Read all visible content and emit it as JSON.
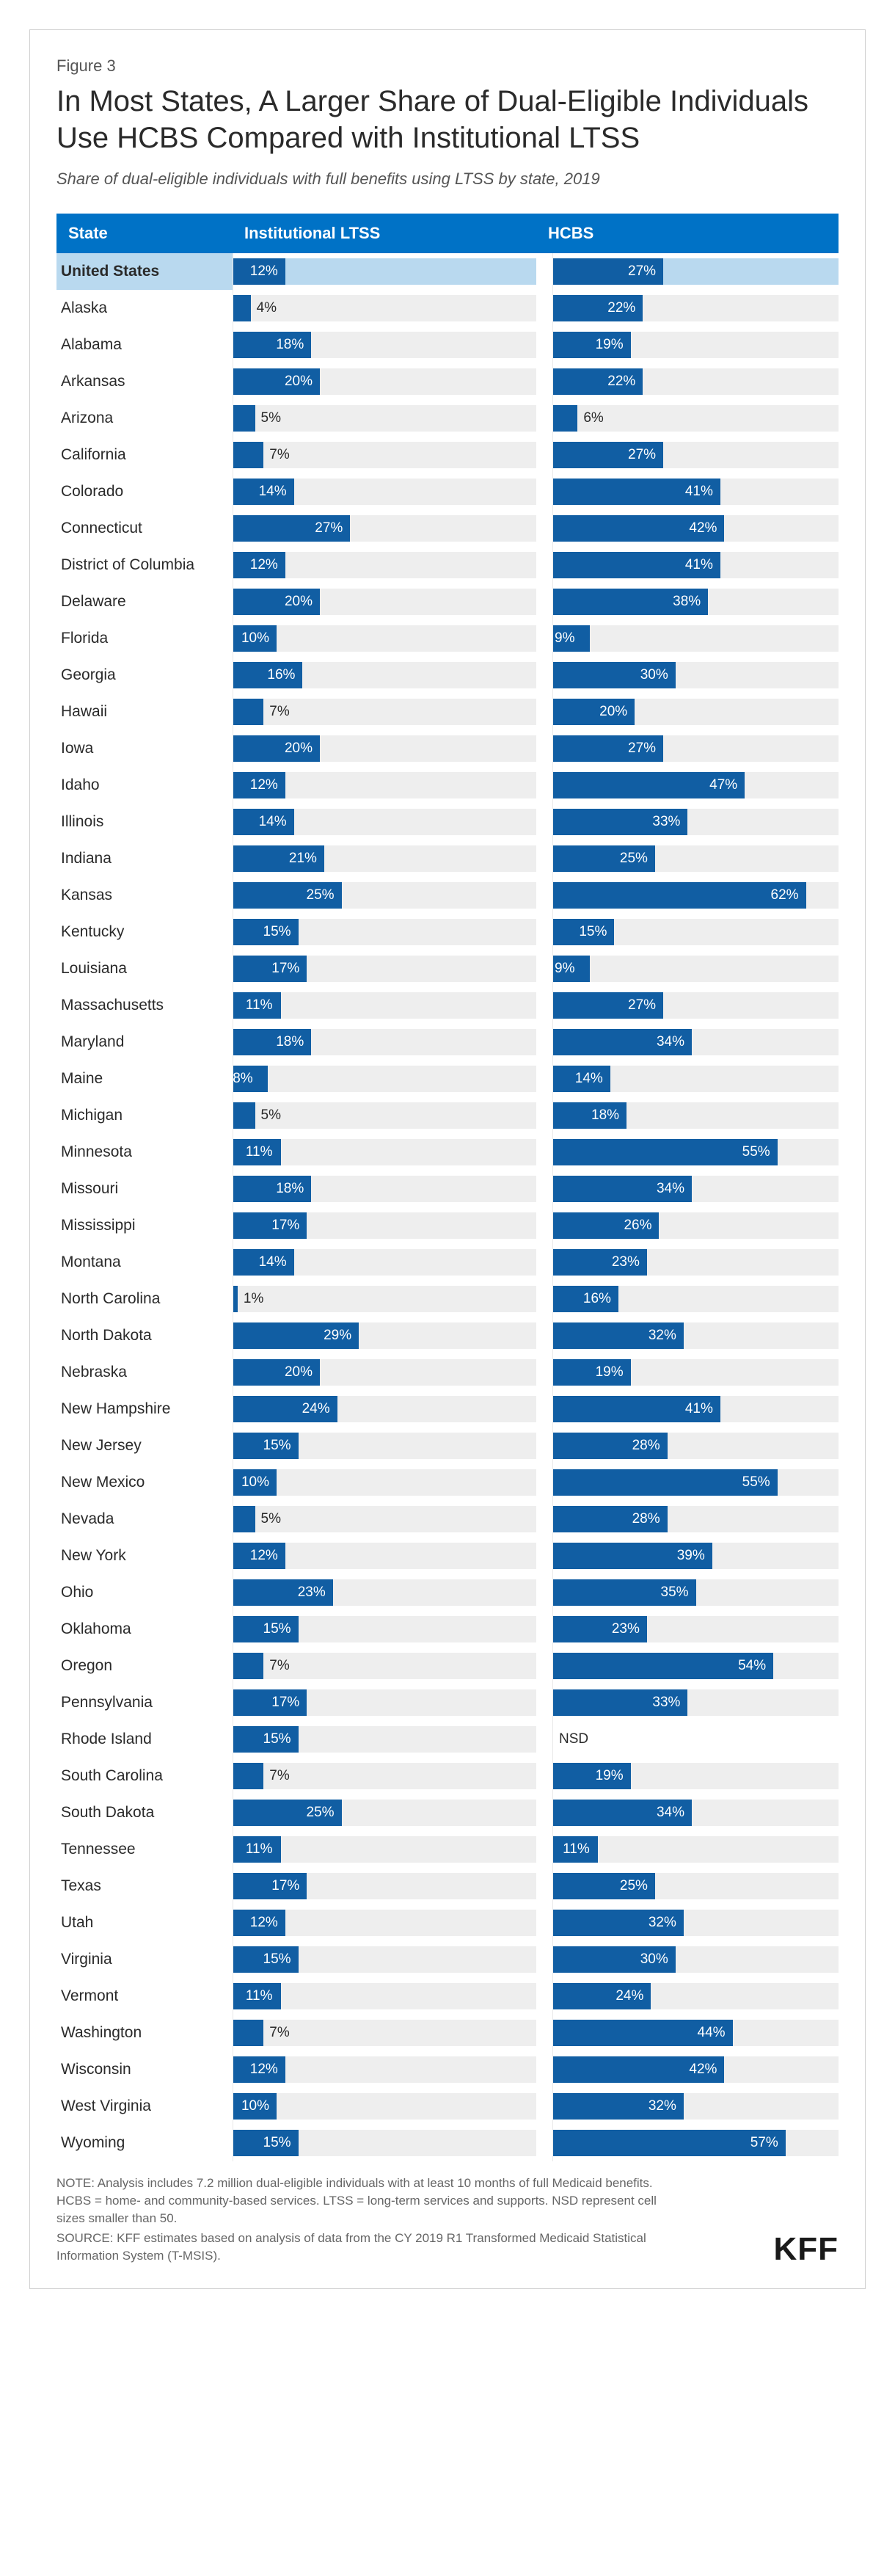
{
  "figure_label": "Figure 3",
  "title": "In Most States, A Larger Share of Dual-Eligible Individuals Use HCBS Compared with Institutional LTSS",
  "subtitle": "Share of dual-eligible individuals with full benefits using LTSS by state, 2019",
  "columns": {
    "state": "State",
    "institutional": "Institutional LTSS",
    "hcbs": "HCBS"
  },
  "bar_color": "#115ea3",
  "track_color": "#eeeeee",
  "highlight_color": "#b9d9ef",
  "header_bg": "#0072c6",
  "text_color": "#2a2a2a",
  "inside_threshold": 8,
  "axis_max": 70,
  "rows": [
    {
      "state": "United States",
      "inst": 12,
      "hcbs": 27,
      "highlight": true
    },
    {
      "state": "Alaska",
      "inst": 4,
      "hcbs": 22
    },
    {
      "state": "Alabama",
      "inst": 18,
      "hcbs": 19
    },
    {
      "state": "Arkansas",
      "inst": 20,
      "hcbs": 22
    },
    {
      "state": "Arizona",
      "inst": 5,
      "hcbs": 6
    },
    {
      "state": "California",
      "inst": 7,
      "hcbs": 27
    },
    {
      "state": "Colorado",
      "inst": 14,
      "hcbs": 41
    },
    {
      "state": "Connecticut",
      "inst": 27,
      "hcbs": 42
    },
    {
      "state": "District of Columbia",
      "inst": 12,
      "hcbs": 41
    },
    {
      "state": "Delaware",
      "inst": 20,
      "hcbs": 38
    },
    {
      "state": "Florida",
      "inst": 10,
      "hcbs": 9
    },
    {
      "state": "Georgia",
      "inst": 16,
      "hcbs": 30
    },
    {
      "state": "Hawaii",
      "inst": 7,
      "hcbs": 20
    },
    {
      "state": "Iowa",
      "inst": 20,
      "hcbs": 27
    },
    {
      "state": "Idaho",
      "inst": 12,
      "hcbs": 47
    },
    {
      "state": "Illinois",
      "inst": 14,
      "hcbs": 33
    },
    {
      "state": "Indiana",
      "inst": 21,
      "hcbs": 25
    },
    {
      "state": "Kansas",
      "inst": 25,
      "hcbs": 62
    },
    {
      "state": "Kentucky",
      "inst": 15,
      "hcbs": 15
    },
    {
      "state": "Louisiana",
      "inst": 17,
      "hcbs": 9
    },
    {
      "state": "Massachusetts",
      "inst": 11,
      "hcbs": 27
    },
    {
      "state": "Maryland",
      "inst": 18,
      "hcbs": 34
    },
    {
      "state": "Maine",
      "inst": 8,
      "hcbs": 14
    },
    {
      "state": "Michigan",
      "inst": 5,
      "hcbs": 18
    },
    {
      "state": "Minnesota",
      "inst": 11,
      "hcbs": 55
    },
    {
      "state": "Missouri",
      "inst": 18,
      "hcbs": 34
    },
    {
      "state": "Mississippi",
      "inst": 17,
      "hcbs": 26
    },
    {
      "state": "Montana",
      "inst": 14,
      "hcbs": 23
    },
    {
      "state": "North Carolina",
      "inst": 1,
      "hcbs": 16
    },
    {
      "state": "North Dakota",
      "inst": 29,
      "hcbs": 32
    },
    {
      "state": "Nebraska",
      "inst": 20,
      "hcbs": 19
    },
    {
      "state": "New Hampshire",
      "inst": 24,
      "hcbs": 41
    },
    {
      "state": "New Jersey",
      "inst": 15,
      "hcbs": 28
    },
    {
      "state": "New Mexico",
      "inst": 10,
      "hcbs": 55
    },
    {
      "state": "Nevada",
      "inst": 5,
      "hcbs": 28
    },
    {
      "state": "New York",
      "inst": 12,
      "hcbs": 39
    },
    {
      "state": "Ohio",
      "inst": 23,
      "hcbs": 35
    },
    {
      "state": "Oklahoma",
      "inst": 15,
      "hcbs": 23
    },
    {
      "state": "Oregon",
      "inst": 7,
      "hcbs": 54
    },
    {
      "state": "Pennsylvania",
      "inst": 17,
      "hcbs": 33
    },
    {
      "state": "Rhode Island",
      "inst": 15,
      "hcbs": null,
      "hcbs_text": "NSD"
    },
    {
      "state": "South Carolina",
      "inst": 7,
      "hcbs": 19
    },
    {
      "state": "South Dakota",
      "inst": 25,
      "hcbs": 34
    },
    {
      "state": "Tennessee",
      "inst": 11,
      "hcbs": 11
    },
    {
      "state": "Texas",
      "inst": 17,
      "hcbs": 25
    },
    {
      "state": "Utah",
      "inst": 12,
      "hcbs": 32
    },
    {
      "state": "Virginia",
      "inst": 15,
      "hcbs": 30
    },
    {
      "state": "Vermont",
      "inst": 11,
      "hcbs": 24
    },
    {
      "state": "Washington",
      "inst": 7,
      "hcbs": 44
    },
    {
      "state": "Wisconsin",
      "inst": 12,
      "hcbs": 42
    },
    {
      "state": "West Virginia",
      "inst": 10,
      "hcbs": 32
    },
    {
      "state": "Wyoming",
      "inst": 15,
      "hcbs": 57
    }
  ],
  "note": "NOTE: Analysis includes 7.2 million dual-eligible individuals with at least 10 months of full Medicaid benefits. HCBS = home- and community-based services. LTSS = long-term services and supports. NSD represent cell sizes smaller than 50.",
  "source": "SOURCE: KFF estimates based on analysis of data from the CY 2019 R1 Transformed Medicaid Statistical Information System (T-MSIS).",
  "logo": "KFF"
}
